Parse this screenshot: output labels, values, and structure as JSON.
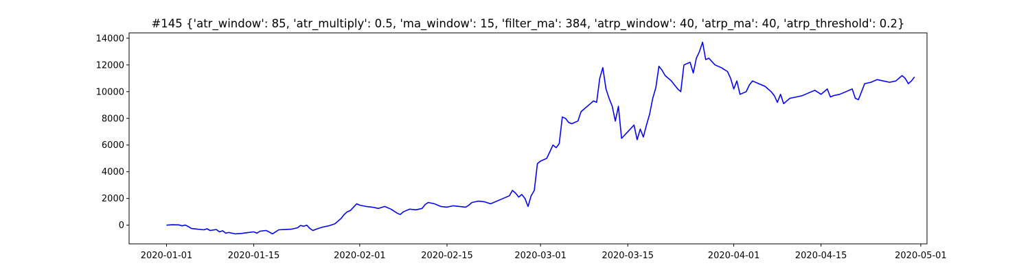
{
  "chart_data": {
    "type": "line",
    "title": "#145 {'atr_window': 85, 'atr_multiply': 0.5, 'ma_window': 15, 'filter_ma': 384, 'atrp_window': 40, 'atrp_ma': 40, 'atrp_threshold': 0.2}",
    "xlabel": "",
    "ylabel": "",
    "xlim": [
      "2019-12-26",
      "2020-05-02"
    ],
    "ylim": [
      -1400,
      14400
    ],
    "x_ticks": [
      "2020-01-01",
      "2020-01-15",
      "2020-02-01",
      "2020-02-15",
      "2020-03-01",
      "2020-03-15",
      "2020-04-01",
      "2020-04-15",
      "2020-05-01"
    ],
    "y_ticks": [
      0,
      2000,
      4000,
      6000,
      8000,
      10000,
      12000,
      14000
    ],
    "y_tick_labels": [
      "0",
      "2000",
      "4000",
      "6000",
      "8000",
      "10000",
      "12000",
      "14000"
    ],
    "grid": false,
    "series": [
      {
        "color": "#0000ff",
        "points": [
          [
            "2020-01-01",
            0
          ],
          [
            "2020-01-02",
            30
          ],
          [
            "2020-01-03",
            20
          ],
          [
            "2020-01-03 12:00",
            -50
          ],
          [
            "2020-01-04",
            10
          ],
          [
            "2020-01-04 12:00",
            -100
          ],
          [
            "2020-01-05",
            -250
          ],
          [
            "2020-01-06",
            -300
          ],
          [
            "2020-01-07",
            -350
          ],
          [
            "2020-01-07 12:00",
            -270
          ],
          [
            "2020-01-08",
            -400
          ],
          [
            "2020-01-09",
            -330
          ],
          [
            "2020-01-09 12:00",
            -500
          ],
          [
            "2020-01-10",
            -420
          ],
          [
            "2020-01-10 12:00",
            -600
          ],
          [
            "2020-01-11",
            -550
          ],
          [
            "2020-01-12",
            -650
          ],
          [
            "2020-01-13",
            -620
          ],
          [
            "2020-01-14",
            -560
          ],
          [
            "2020-01-15",
            -500
          ],
          [
            "2020-01-15 12:00",
            -600
          ],
          [
            "2020-01-16",
            -450
          ],
          [
            "2020-01-17",
            -400
          ],
          [
            "2020-01-17 12:00",
            -520
          ],
          [
            "2020-01-18",
            -650
          ],
          [
            "2020-01-19",
            -350
          ],
          [
            "2020-01-20",
            -330
          ],
          [
            "2020-01-21",
            -300
          ],
          [
            "2020-01-22",
            -200
          ],
          [
            "2020-01-22 12:00",
            -20
          ],
          [
            "2020-01-23",
            -80
          ],
          [
            "2020-01-23 12:00",
            0
          ],
          [
            "2020-01-24",
            -250
          ],
          [
            "2020-01-24 12:00",
            -400
          ],
          [
            "2020-01-25",
            -300
          ],
          [
            "2020-01-26",
            -150
          ],
          [
            "2020-01-27",
            -50
          ],
          [
            "2020-01-28",
            100
          ],
          [
            "2020-01-28 12:00",
            300
          ],
          [
            "2020-01-29",
            500
          ],
          [
            "2020-01-29 12:00",
            800
          ],
          [
            "2020-01-30",
            1000
          ],
          [
            "2020-01-30 12:00",
            1100
          ],
          [
            "2020-01-31",
            1350
          ],
          [
            "2020-01-31 12:00",
            1600
          ],
          [
            "2020-02-01",
            1500
          ],
          [
            "2020-02-02",
            1400
          ],
          [
            "2020-02-03",
            1350
          ],
          [
            "2020-02-04",
            1250
          ],
          [
            "2020-02-05",
            1400
          ],
          [
            "2020-02-06",
            1200
          ],
          [
            "2020-02-07",
            900
          ],
          [
            "2020-02-07 12:00",
            800
          ],
          [
            "2020-02-08",
            1000
          ],
          [
            "2020-02-09",
            1200
          ],
          [
            "2020-02-10",
            1150
          ],
          [
            "2020-02-11",
            1250
          ],
          [
            "2020-02-11 12:00",
            1550
          ],
          [
            "2020-02-12",
            1700
          ],
          [
            "2020-02-13",
            1600
          ],
          [
            "2020-02-14",
            1400
          ],
          [
            "2020-02-15",
            1350
          ],
          [
            "2020-02-16",
            1450
          ],
          [
            "2020-02-17",
            1400
          ],
          [
            "2020-02-18",
            1350
          ],
          [
            "2020-02-18 12:00",
            1500
          ],
          [
            "2020-02-19",
            1700
          ],
          [
            "2020-02-20",
            1800
          ],
          [
            "2020-02-21",
            1750
          ],
          [
            "2020-02-22",
            1600
          ],
          [
            "2020-02-24",
            2000
          ],
          [
            "2020-02-25",
            2200
          ],
          [
            "2020-02-25 12:00",
            2600
          ],
          [
            "2020-02-26",
            2400
          ],
          [
            "2020-02-26 12:00",
            2100
          ],
          [
            "2020-02-27",
            2300
          ],
          [
            "2020-02-27 12:00",
            2000
          ],
          [
            "2020-02-28",
            1400
          ],
          [
            "2020-02-28 12:00",
            2200
          ],
          [
            "2020-02-29",
            2600
          ],
          [
            "2020-02-29 12:00",
            4600
          ],
          [
            "2020-03-01",
            4800
          ],
          [
            "2020-03-02",
            5000
          ],
          [
            "2020-03-02 12:00",
            5500
          ],
          [
            "2020-03-03",
            6000
          ],
          [
            "2020-03-03 12:00",
            5800
          ],
          [
            "2020-03-04",
            6100
          ],
          [
            "2020-03-04 12:00",
            8100
          ],
          [
            "2020-03-05",
            8000
          ],
          [
            "2020-03-05 12:00",
            7700
          ],
          [
            "2020-03-06",
            7600
          ],
          [
            "2020-03-07",
            7800
          ],
          [
            "2020-03-07 12:00",
            8500
          ],
          [
            "2020-03-08",
            8700
          ],
          [
            "2020-03-09",
            9100
          ],
          [
            "2020-03-09 12:00",
            9300
          ],
          [
            "2020-03-10",
            9200
          ],
          [
            "2020-03-10 12:00",
            11000
          ],
          [
            "2020-03-11",
            11800
          ],
          [
            "2020-03-11 12:00",
            10200
          ],
          [
            "2020-03-12",
            9500
          ],
          [
            "2020-03-12 12:00",
            8900
          ],
          [
            "2020-03-13",
            7800
          ],
          [
            "2020-03-13 12:00",
            8900
          ],
          [
            "2020-03-14",
            6500
          ],
          [
            "2020-03-15",
            7000
          ],
          [
            "2020-03-16",
            7500
          ],
          [
            "2020-03-16 12:00",
            6400
          ],
          [
            "2020-03-17",
            7200
          ],
          [
            "2020-03-17 12:00",
            6600
          ],
          [
            "2020-03-18",
            7500
          ],
          [
            "2020-03-18 12:00",
            8300
          ],
          [
            "2020-03-19",
            9500
          ],
          [
            "2020-03-19 12:00",
            10300
          ],
          [
            "2020-03-20",
            11900
          ],
          [
            "2020-03-20 12:00",
            11600
          ],
          [
            "2020-03-21",
            11200
          ],
          [
            "2020-03-22",
            10800
          ],
          [
            "2020-03-23",
            10200
          ],
          [
            "2020-03-23 12:00",
            10000
          ],
          [
            "2020-03-24",
            12000
          ],
          [
            "2020-03-25",
            12200
          ],
          [
            "2020-03-25 12:00",
            11400
          ],
          [
            "2020-03-26",
            12500
          ],
          [
            "2020-03-26 12:00",
            13000
          ],
          [
            "2020-03-27",
            13700
          ],
          [
            "2020-03-27 12:00",
            12400
          ],
          [
            "2020-03-28",
            12500
          ],
          [
            "2020-03-29",
            12000
          ],
          [
            "2020-03-30",
            11800
          ],
          [
            "2020-03-31",
            11500
          ],
          [
            "2020-03-31 12:00",
            11000
          ],
          [
            "2020-04-01",
            10200
          ],
          [
            "2020-04-01 12:00",
            10800
          ],
          [
            "2020-04-02",
            9800
          ],
          [
            "2020-04-03",
            10000
          ],
          [
            "2020-04-03 12:00",
            10500
          ],
          [
            "2020-04-04",
            10800
          ],
          [
            "2020-04-05",
            10600
          ],
          [
            "2020-04-06",
            10400
          ],
          [
            "2020-04-07",
            10000
          ],
          [
            "2020-04-07 12:00",
            9700
          ],
          [
            "2020-04-08",
            9200
          ],
          [
            "2020-04-08 12:00",
            9800
          ],
          [
            "2020-04-09",
            9100
          ],
          [
            "2020-04-10",
            9500
          ],
          [
            "2020-04-11",
            9600
          ],
          [
            "2020-04-12",
            9700
          ],
          [
            "2020-04-13",
            9900
          ],
          [
            "2020-04-14",
            10100
          ],
          [
            "2020-04-15",
            9800
          ],
          [
            "2020-04-16",
            10200
          ],
          [
            "2020-04-16 12:00",
            9600
          ],
          [
            "2020-04-17",
            9700
          ],
          [
            "2020-04-18",
            9800
          ],
          [
            "2020-04-19",
            10000
          ],
          [
            "2020-04-20",
            10200
          ],
          [
            "2020-04-20 12:00",
            9500
          ],
          [
            "2020-04-21",
            9400
          ],
          [
            "2020-04-21 12:00",
            10000
          ],
          [
            "2020-04-22",
            10600
          ],
          [
            "2020-04-23",
            10700
          ],
          [
            "2020-04-24",
            10900
          ],
          [
            "2020-04-25",
            10800
          ],
          [
            "2020-04-26",
            10700
          ],
          [
            "2020-04-27",
            10800
          ],
          [
            "2020-04-28",
            11200
          ],
          [
            "2020-04-28 12:00",
            11000
          ],
          [
            "2020-04-29",
            10600
          ],
          [
            "2020-04-29 12:00",
            10800
          ],
          [
            "2020-04-30",
            11100
          ]
        ]
      }
    ]
  }
}
